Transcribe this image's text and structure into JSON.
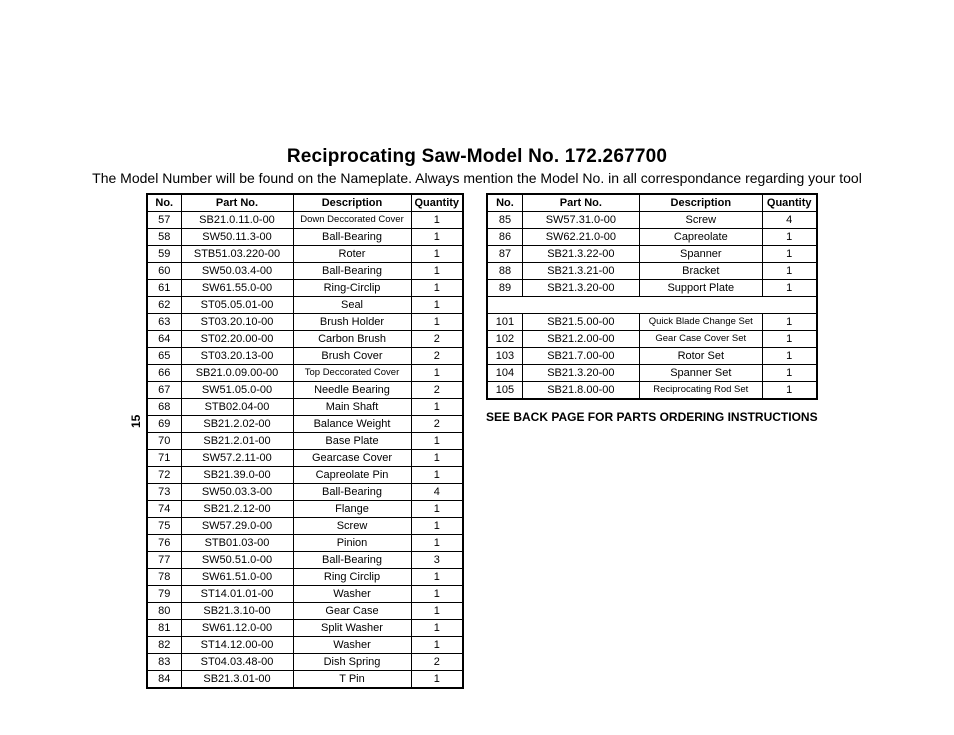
{
  "title": "Reciprocating Saw-Model No. 172.267700",
  "subtitle": "The Model Number will be found on the Nameplate. Always mention the Model No. in all correspondance regarding your tool",
  "page_number_rotated": "15",
  "footnote": "SEE BACK PAGE FOR PARTS ORDERING INSTRUCTIONS",
  "headers": {
    "no": "No.",
    "part": "Part No.",
    "desc": "Description",
    "qty": "Quantity"
  },
  "left_rows": [
    {
      "no": "57",
      "part": "SB21.0.11.0-00",
      "desc": "Down Deccorated Cover",
      "qty": "1",
      "small": true
    },
    {
      "no": "58",
      "part": "SW50.11.3-00",
      "desc": "Ball-Bearing",
      "qty": "1"
    },
    {
      "no": "59",
      "part": "STB51.03.220-00",
      "desc": "Roter",
      "qty": "1"
    },
    {
      "no": "60",
      "part": "SW50.03.4-00",
      "desc": "Ball-Bearing",
      "qty": "1"
    },
    {
      "no": "61",
      "part": "SW61.55.0-00",
      "desc": "Ring-Circlip",
      "qty": "1"
    },
    {
      "no": "62",
      "part": "ST05.05.01-00",
      "desc": "Seal",
      "qty": "1"
    },
    {
      "no": "63",
      "part": "ST03.20.10-00",
      "desc": "Brush Holder",
      "qty": "1"
    },
    {
      "no": "64",
      "part": "ST02.20.00-00",
      "desc": "Carbon Brush",
      "qty": "2"
    },
    {
      "no": "65",
      "part": "ST03.20.13-00",
      "desc": "Brush Cover",
      "qty": "2"
    },
    {
      "no": "66",
      "part": "SB21.0.09.00-00",
      "desc": "Top Deccorated Cover",
      "qty": "1",
      "small": true
    },
    {
      "no": "67",
      "part": "SW51.05.0-00",
      "desc": "Needle Bearing",
      "qty": "2"
    },
    {
      "no": "68",
      "part": "STB02.04-00",
      "desc": "Main Shaft",
      "qty": "1"
    },
    {
      "no": "69",
      "part": "SB21.2.02-00",
      "desc": "Balance Weight",
      "qty": "2"
    },
    {
      "no": "70",
      "part": "SB21.2.01-00",
      "desc": "Base Plate",
      "qty": "1"
    },
    {
      "no": "71",
      "part": "SW57.2.11-00",
      "desc": "Gearcase Cover",
      "qty": "1"
    },
    {
      "no": "72",
      "part": "SB21.39.0-00",
      "desc": "Capreolate Pin",
      "qty": "1"
    },
    {
      "no": "73",
      "part": "SW50.03.3-00",
      "desc": "Ball-Bearing",
      "qty": "4"
    },
    {
      "no": "74",
      "part": "SB21.2.12-00",
      "desc": "Flange",
      "qty": "1"
    },
    {
      "no": "75",
      "part": "SW57.29.0-00",
      "desc": "Screw",
      "qty": "1"
    },
    {
      "no": "76",
      "part": "STB01.03-00",
      "desc": "Pinion",
      "qty": "1"
    },
    {
      "no": "77",
      "part": "SW50.51.0-00",
      "desc": "Ball-Bearing",
      "qty": "3"
    },
    {
      "no": "78",
      "part": "SW61.51.0-00",
      "desc": "Ring Circlip",
      "qty": "1"
    },
    {
      "no": "79",
      "part": "ST14.01.01-00",
      "desc": "Washer",
      "qty": "1"
    },
    {
      "no": "80",
      "part": "SB21.3.10-00",
      "desc": "Gear Case",
      "qty": "1"
    },
    {
      "no": "81",
      "part": "SW61.12.0-00",
      "desc": "Split Washer",
      "qty": "1"
    },
    {
      "no": "82",
      "part": "ST14.12.00-00",
      "desc": "Washer",
      "qty": "1"
    },
    {
      "no": "83",
      "part": "ST04.03.48-00",
      "desc": "Dish Spring",
      "qty": "2"
    },
    {
      "no": "84",
      "part": "SB21.3.01-00",
      "desc": "T Pin",
      "qty": "1"
    }
  ],
  "right_rows_a": [
    {
      "no": "85",
      "part": "SW57.31.0-00",
      "desc": "Screw",
      "qty": "4"
    },
    {
      "no": "86",
      "part": "SW62.21.0-00",
      "desc": "Capreolate",
      "qty": "1"
    },
    {
      "no": "87",
      "part": "SB21.3.22-00",
      "desc": "Spanner",
      "qty": "1"
    },
    {
      "no": "88",
      "part": "SB21.3.21-00",
      "desc": "Bracket",
      "qty": "1"
    },
    {
      "no": "89",
      "part": "SB21.3.20-00",
      "desc": "Support Plate",
      "qty": "1"
    }
  ],
  "right_rows_b": [
    {
      "no": "101",
      "part": "SB21.5.00-00",
      "desc": "Quick Blade Change Set",
      "qty": "1",
      "small": true
    },
    {
      "no": "102",
      "part": "SB21.2.00-00",
      "desc": "Gear Case Cover Set",
      "qty": "1",
      "small": true
    },
    {
      "no": "103",
      "part": "SB21.7.00-00",
      "desc": "Rotor Set",
      "qty": "1"
    },
    {
      "no": "104",
      "part": "SB21.3.20-00",
      "desc": "Spanner Set",
      "qty": "1"
    },
    {
      "no": "105",
      "part": "SB21.8.00-00",
      "desc": "Reciprocating Rod Set",
      "qty": "1",
      "small": true
    }
  ]
}
